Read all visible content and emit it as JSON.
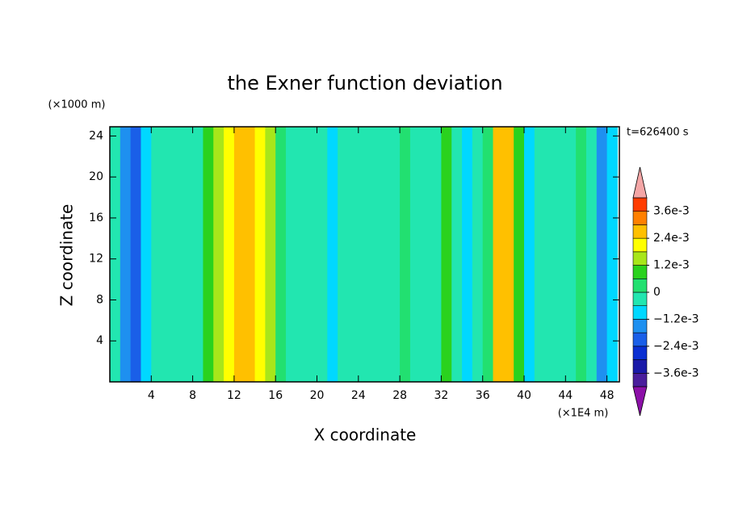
{
  "chart_data": {
    "type": "contour",
    "title": "the Exner function deviation",
    "x_label": "X coordinate",
    "y_label": "Z coordinate",
    "x_unit": "(×1E4 m)",
    "y_unit": "(×1000 m)",
    "annotation": "t=626400 s",
    "xlim": [
      0,
      49.2
    ],
    "ylim": [
      0,
      24.9
    ],
    "xticks": [
      4,
      8,
      12,
      16,
      20,
      24,
      28,
      32,
      36,
      40,
      44,
      48
    ],
    "yticks": [
      4,
      8,
      12,
      16,
      20,
      24
    ],
    "x": [
      0.5,
      1.5,
      2.5,
      3.5,
      4.5,
      5.5,
      6.5,
      7.5,
      8.5,
      9.5,
      10.5,
      11.5,
      12.5,
      13.5,
      14.5,
      15.5,
      16.5,
      17.5,
      18.5,
      19.5,
      20.5,
      21.5,
      22.5,
      23.5,
      24.5,
      25.5,
      26.5,
      27.5,
      28.5,
      29.5,
      30.5,
      31.5,
      32.5,
      33.5,
      34.5,
      35.5,
      36.5,
      37.5,
      38.5,
      39.5,
      40.5,
      41.5,
      42.5,
      43.5,
      44.5,
      45.5,
      46.5,
      47.5,
      48.5
    ],
    "values": [
      -0.0005,
      -0.0015,
      -0.002,
      -0.001,
      -0.0005,
      -0.0003,
      -0.0003,
      -0.0005,
      -0.0002,
      0.0008,
      0.0016,
      0.002,
      0.0025,
      0.0028,
      0.0022,
      0.0012,
      0.0002,
      -0.0003,
      -0.0003,
      -0.0004,
      -0.0004,
      -0.0007,
      -0.0004,
      -0.0003,
      -0.0003,
      -0.0003,
      -0.0003,
      -0.0001,
      0.0004,
      -0.0002,
      -0.0003,
      -0.0005,
      0.0008,
      -0.0005,
      -0.001,
      -0.0004,
      0.0003,
      0.0025,
      0.0026,
      0.0006,
      -0.001,
      -0.0005,
      -0.0006,
      -0.0004,
      -0.0003,
      0.0001,
      -0.0005,
      -0.0013,
      -0.0007
    ],
    "levels": [
      -0.0042,
      -0.0036,
      -0.003,
      -0.0024,
      -0.0018,
      -0.0012,
      -0.0006,
      0,
      0.0006,
      0.0012,
      0.0018,
      0.0024,
      0.003,
      0.0036,
      0.0042
    ],
    "colors": [
      "#4a1e9c",
      "#1a1aa8",
      "#0a2fd2",
      "#1a5fe8",
      "#1e90f0",
      "#00d8ff",
      "#22e6b0",
      "#22e070",
      "#2ad21e",
      "#a8e61a",
      "#ffff00",
      "#ffc000",
      "#ff8000",
      "#ff3c00"
    ],
    "over_color": "#f4a6a6",
    "under_color": "#8c10a8",
    "colorbar_ticks": [
      {
        "value": 0.0036,
        "label": "3.6e-3"
      },
      {
        "value": 0.0024,
        "label": "2.4e-3"
      },
      {
        "value": 0.0012,
        "label": "1.2e-3"
      },
      0,
      {
        "value": -0.0012,
        "label": "−1.2e-3"
      },
      {
        "value": -0.0024,
        "label": "−2.4e-3"
      },
      {
        "value": -0.0036,
        "label": "−3.6e-3"
      }
    ]
  }
}
